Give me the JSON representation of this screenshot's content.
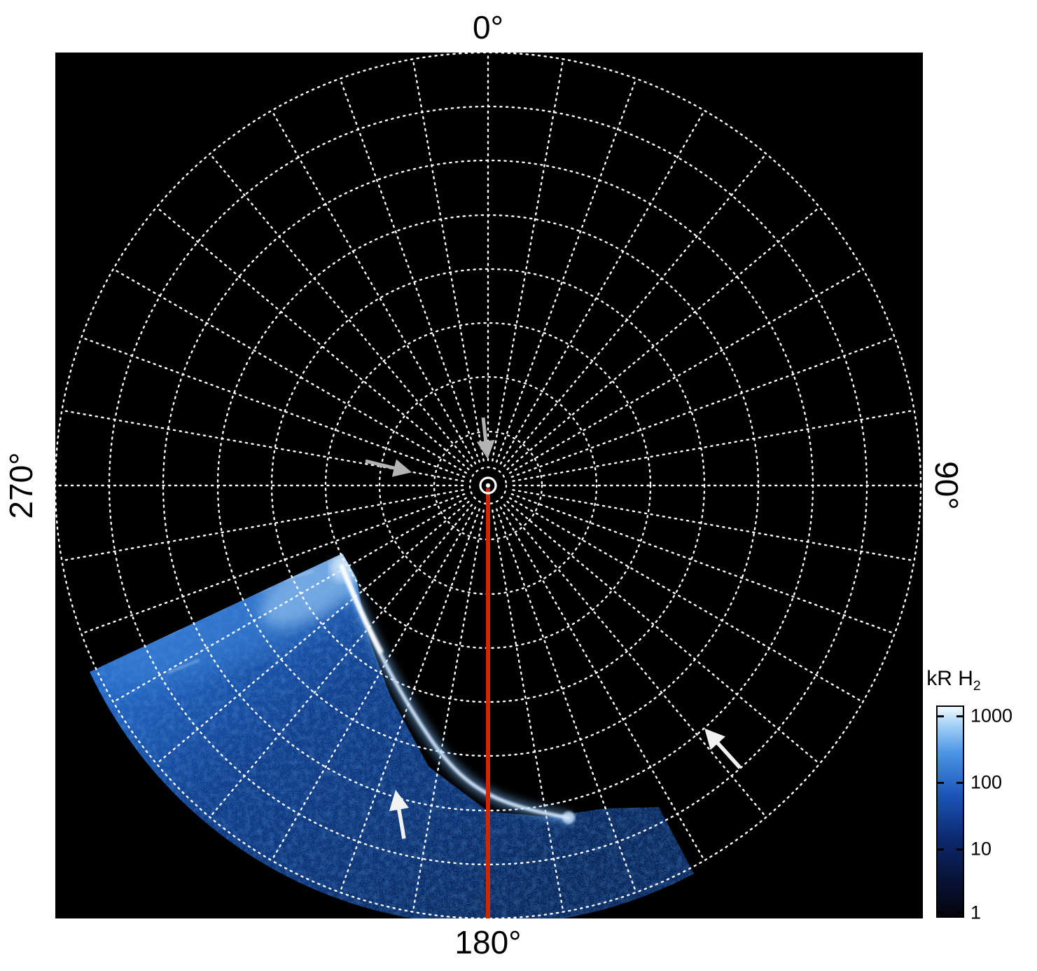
{
  "figure": {
    "angle_labels": {
      "top": "0°",
      "right": "90°",
      "bottom": "180°",
      "left": "270°"
    },
    "colorbar": {
      "title_main": "kR H",
      "title_sub": "2",
      "ticks": [
        "1000",
        "100",
        "10",
        "1"
      ]
    }
  },
  "chart_data": {
    "type": "heatmap",
    "projection": "polar",
    "background_color": "#000000",
    "title": "",
    "angular_tick_labels": [
      "0°",
      "90°",
      "180°",
      "270°"
    ],
    "angular_ticks_deg": [
      0,
      90,
      180,
      270
    ],
    "grid": {
      "style": "dotted white",
      "rings_count": 8,
      "ring_step_deg": 10,
      "spoke_step_deg": 10
    },
    "colorbar": {
      "label": "kR H2",
      "scale": "log",
      "range": [
        1,
        1000
      ],
      "tick_values": [
        1000,
        100,
        10,
        1
      ],
      "colors_low_to_high": [
        "#05050d",
        "#081338",
        "#0d2a72",
        "#1b55b8",
        "#4b95e6",
        "#f2faff"
      ]
    },
    "series": [
      {
        "name": "H2 auroral emission patch",
        "azimuth_range_deg": [
          150,
          245
        ],
        "radius_range_frac_of_outer_ring": [
          0.37,
          1.0
        ],
        "brightness_kR_range": [
          1,
          1000
        ],
        "texture": "speckled blue emission, brighter toward upper-left edge"
      },
      {
        "name": "bright auroral arc",
        "description": "narrow bright white-blue arc curving along the inner edge of the emission patch",
        "peak_kR": 1000
      }
    ],
    "annotations": [
      {
        "name": "meridian line",
        "azimuth_deg": 180,
        "from": "center",
        "to": "outer edge",
        "color": "#cf2600"
      },
      {
        "name": "gray arrow pointing down toward center pole"
      },
      {
        "name": "gray arrow left of center pointing right toward pole region"
      },
      {
        "name": "white arrow inside emission patch pointing up"
      },
      {
        "name": "white arrow over lower-right grid pointing up-left"
      }
    ]
  }
}
